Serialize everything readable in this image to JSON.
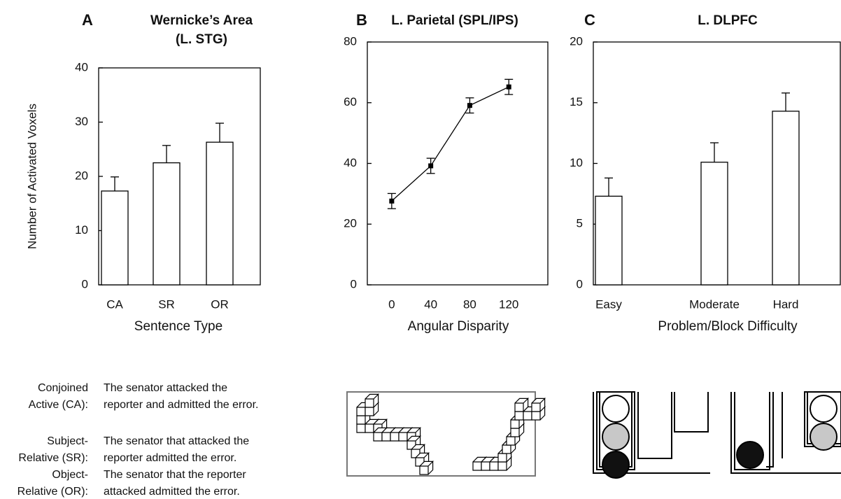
{
  "chart_data": [
    {
      "panel": "A",
      "type": "bar",
      "title": "Wernicke’s Area",
      "subtitle": "(L. STG)",
      "y_label": "Number of Activated Voxels",
      "x_label": "Sentence Type",
      "categories": [
        "CA",
        "SR",
        "OR"
      ],
      "values": [
        17.3,
        22.5,
        26.3
      ],
      "errors": [
        2.6,
        3.2,
        3.5
      ],
      "color": "#ffffff",
      "ylim": [
        0,
        40
      ],
      "yticks": [
        0,
        10,
        20,
        30,
        40
      ]
    },
    {
      "panel": "B",
      "type": "line",
      "title": "L. Parietal (SPL/IPS)",
      "x_label": "Angular Disparity",
      "x": [
        0,
        40,
        80,
        120
      ],
      "values": [
        27.6,
        39.2,
        59.1,
        65.2
      ],
      "errors": [
        2.5,
        2.5,
        2.5,
        2.5
      ],
      "color": "#000000",
      "xlim": [
        -25,
        160
      ],
      "xticks": [
        0,
        40,
        80,
        120
      ],
      "ylim": [
        0,
        80
      ],
      "yticks": [
        0,
        20,
        40,
        60,
        80
      ]
    },
    {
      "panel": "C",
      "type": "bar",
      "title": "L. DLPFC",
      "x_label": "Problem/Block Difficulty",
      "categories": [
        "Easy",
        "Moderate",
        "Hard"
      ],
      "values": [
        7.3,
        10.1,
        14.3
      ],
      "errors": [
        1.5,
        1.6,
        1.5
      ],
      "color": "#ffffff",
      "ylim": [
        0,
        20
      ],
      "yticks": [
        0,
        5,
        10,
        15,
        20
      ]
    }
  ],
  "sentences": [
    {
      "label": [
        "Conjoined",
        "Active (CA):"
      ],
      "text": [
        "The senator attacked the",
        "reporter and admitted the error."
      ]
    },
    {
      "label": [
        "Subject-",
        "Relative (SR):"
      ],
      "text": [
        "The senator that attacked the",
        "reporter admitted the error."
      ]
    },
    {
      "label": [
        "Object-",
        "Relative (OR):"
      ],
      "text": [
        "The senator that the reporter",
        "attacked admitted the error."
      ]
    }
  ]
}
